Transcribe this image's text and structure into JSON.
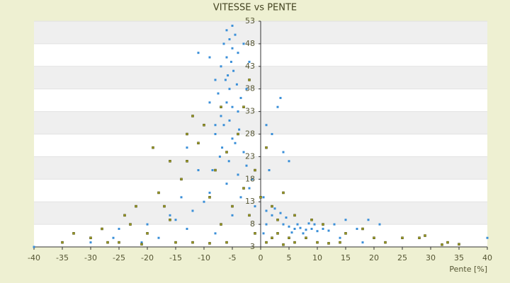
{
  "chart_data": {
    "type": "scatter",
    "title": "VITESSE vs PENTE",
    "x_label": "Pente [%]",
    "xlim": [
      -40,
      40
    ],
    "xticks": [
      -40,
      -35,
      -30,
      -25,
      -20,
      -15,
      -10,
      -5,
      0,
      5,
      10,
      15,
      20,
      25,
      30,
      35,
      40
    ],
    "ylim": [
      3,
      53
    ],
    "yticks": [
      3,
      8,
      13,
      18,
      23,
      28,
      33,
      38,
      43,
      48,
      53
    ],
    "grid": true,
    "series": [
      {
        "color": "#3a8fd8",
        "x": [
          -5,
          -6,
          -4.5,
          -5.5,
          -6.5,
          -5,
          -4,
          -6,
          -5.2,
          -7,
          -4.8,
          -5.8,
          -6.2,
          -4.2,
          -5.5,
          -7.5,
          -3.5,
          -6,
          -5,
          -4,
          -7,
          -5.5,
          -6.5,
          -3.8,
          -8,
          -5,
          -4.5,
          -6.8,
          -3,
          -7.2,
          -5.6,
          -2.5,
          -8.5,
          -4,
          -1.5,
          -6,
          -2,
          -9,
          -3.5,
          -10,
          -1,
          -12,
          -5,
          -15,
          -20,
          -25,
          -8,
          -18,
          -30,
          -40,
          -11,
          -9,
          -3,
          -2,
          -8,
          -2.5,
          -9,
          3.5,
          3,
          1,
          2,
          4,
          5,
          1.5,
          0.5,
          1,
          2,
          3,
          4,
          5,
          6,
          7,
          8,
          9,
          10,
          11,
          12,
          6.5,
          7.5,
          8.5,
          5.5,
          4.5,
          3.5,
          2.5,
          9.5,
          13,
          15,
          17,
          19,
          21,
          14,
          18,
          -22,
          -16,
          -13,
          -21,
          -26,
          -14,
          -11,
          -13,
          -8,
          1,
          0.5,
          40,
          -35
        ],
        "values": [
          52,
          51,
          50,
          49,
          48,
          47,
          46,
          45,
          44,
          43,
          42,
          41,
          40,
          39,
          38,
          37,
          36,
          35,
          34,
          33,
          32,
          31,
          30,
          29,
          28,
          27,
          26,
          25,
          24,
          23,
          22,
          21,
          20,
          19,
          18,
          17,
          16,
          15,
          14,
          13,
          12,
          11,
          10,
          9,
          8,
          7,
          6,
          5,
          4,
          3,
          46,
          45,
          48,
          44,
          40,
          38,
          35,
          36,
          34,
          30,
          28,
          24,
          22,
          20,
          14,
          11,
          10,
          9,
          8,
          7.5,
          7,
          7.2,
          6.8,
          7,
          6.5,
          7,
          6.6,
          8,
          6,
          8.2,
          6.2,
          9.5,
          10.5,
          11.5,
          8,
          8,
          9,
          7,
          9,
          8,
          5,
          4,
          12,
          10,
          7,
          4,
          5,
          14,
          20,
          25,
          30,
          8,
          6,
          5,
          4
        ]
      },
      {
        "color": "#9a9a1e",
        "x": [
          -33,
          -28,
          -24,
          -22,
          -20,
          -18,
          -16,
          -14,
          -13,
          -12,
          -11,
          -10,
          -9,
          -8,
          -7,
          -6,
          -5,
          -4,
          -3,
          -2,
          -1,
          0,
          -15,
          -25,
          -30,
          -35,
          -19,
          -17,
          -12,
          -7,
          -3,
          1,
          2,
          3,
          4,
          5,
          6,
          8,
          10,
          12,
          14,
          15,
          18,
          20,
          22,
          25,
          28,
          29,
          32,
          35,
          33,
          2,
          3,
          1,
          4,
          6,
          9,
          11,
          -9,
          -21,
          -2,
          -1,
          -6,
          -23,
          -27,
          -16,
          -13
        ],
        "values": [
          6,
          7,
          10,
          12,
          6,
          15,
          9,
          18,
          22,
          4,
          26,
          30,
          14,
          20,
          8,
          24,
          12,
          28,
          16,
          10,
          20,
          14,
          4,
          4,
          5,
          4,
          25,
          12,
          32,
          34,
          34,
          4,
          5,
          6,
          3.5,
          5,
          4,
          5,
          4,
          3.8,
          4,
          6,
          7,
          5,
          4,
          5,
          5,
          5.5,
          3.5,
          3.6,
          4,
          12,
          9,
          25,
          15,
          10,
          9,
          8,
          3.8,
          3.6,
          40,
          6,
          4,
          8,
          4,
          22,
          28
        ]
      }
    ]
  }
}
